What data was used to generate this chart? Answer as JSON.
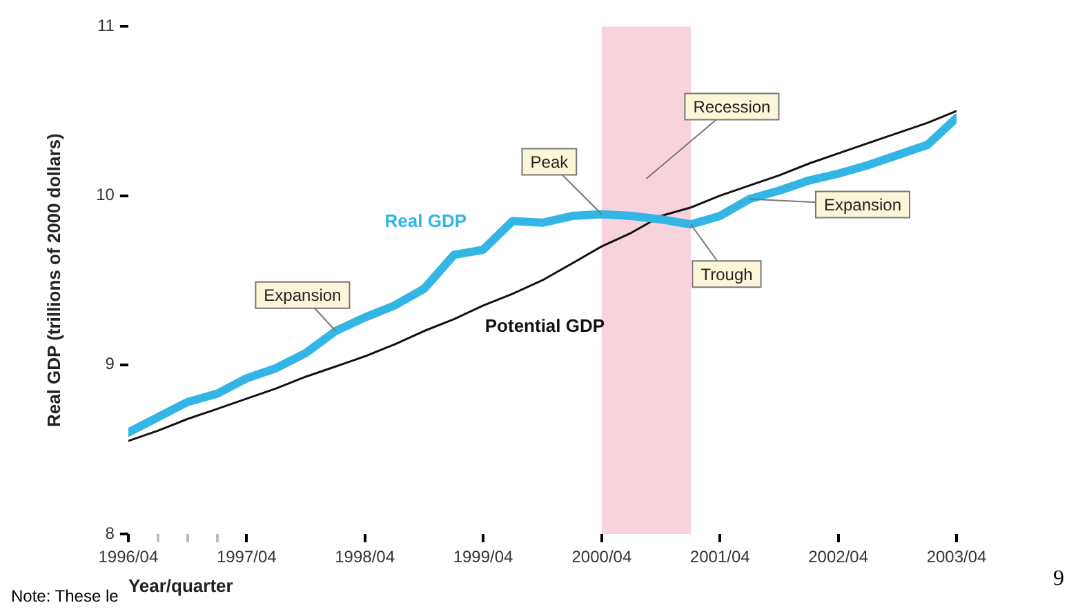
{
  "chart_data": {
    "type": "line",
    "xlabel": "Year/quarter",
    "ylabel": "Real GDP (trillions of 2000 dollars)",
    "x": [
      "1996-04",
      "1996-07",
      "1996-10",
      "1997-01",
      "1997-04",
      "1997-07",
      "1997-10",
      "1998-01",
      "1998-04",
      "1998-07",
      "1998-10",
      "1999-01",
      "1999-04",
      "1999-07",
      "1999-10",
      "2000-01",
      "2000-04",
      "2000-07",
      "2000-10",
      "2001-01",
      "2001-04",
      "2001-07",
      "2001-10",
      "2002-01",
      "2002-04",
      "2002-07",
      "2002-10",
      "2003-01",
      "2003-04"
    ],
    "series": [
      {
        "name": "Potential GDP",
        "color": "#111111",
        "values": [
          8.55,
          8.61,
          8.68,
          8.74,
          8.8,
          8.86,
          8.93,
          8.99,
          9.05,
          9.12,
          9.2,
          9.27,
          9.35,
          9.42,
          9.5,
          9.6,
          9.7,
          9.78,
          9.88,
          9.93,
          10.0,
          10.06,
          10.12,
          10.19,
          10.25,
          10.31,
          10.37,
          10.43,
          10.5
        ]
      },
      {
        "name": "Real GDP",
        "color": "#33b5e5",
        "values": [
          8.6,
          8.69,
          8.78,
          8.83,
          8.92,
          8.98,
          9.07,
          9.2,
          9.28,
          9.35,
          9.45,
          9.65,
          9.68,
          9.85,
          9.84,
          9.88,
          9.89,
          9.88,
          9.86,
          9.83,
          9.88,
          9.98,
          10.03,
          10.09,
          10.13,
          10.18,
          10.24,
          10.3,
          10.46
        ]
      }
    ],
    "xlim": [
      "1996-04",
      "2003-04"
    ],
    "ylim": [
      8,
      11
    ],
    "xticks": [
      {
        "value": "1996-04",
        "label": "1996/04"
      },
      {
        "value": "1996-07",
        "label": null
      },
      {
        "value": "1996-10",
        "label": null
      },
      {
        "value": "1997-01",
        "label": null
      },
      {
        "value": "1997-04",
        "label": "1997/04"
      },
      {
        "value": "1998-04",
        "label": "1998/04"
      },
      {
        "value": "1999-04",
        "label": "1999/04"
      },
      {
        "value": "2000-04",
        "label": "2000/04"
      },
      {
        "value": "2001-04",
        "label": "2001/04"
      },
      {
        "value": "2002-04",
        "label": "2002/04"
      },
      {
        "value": "2003-04",
        "label": "2003/04"
      }
    ],
    "yticks": [
      8,
      9,
      10,
      11
    ],
    "bands": [
      {
        "axis": "x",
        "from": "2000-04",
        "to": "2001-01",
        "label": "Recession",
        "color": "#f9d3dc"
      }
    ],
    "annotations": [
      {
        "text": "Expansion",
        "x": "1998-01",
        "y": 9.2
      },
      {
        "text": "Peak",
        "x": "2000-04",
        "y": 9.89
      },
      {
        "text": "Trough",
        "x": "2001-01",
        "y": 9.83
      },
      {
        "text": "Expansion",
        "x": "2001-07",
        "y": 9.98
      },
      "Note: These le",
      "9"
    ],
    "grid": false,
    "legend": false,
    "marker": "none",
    "line_style": "solid"
  }
}
